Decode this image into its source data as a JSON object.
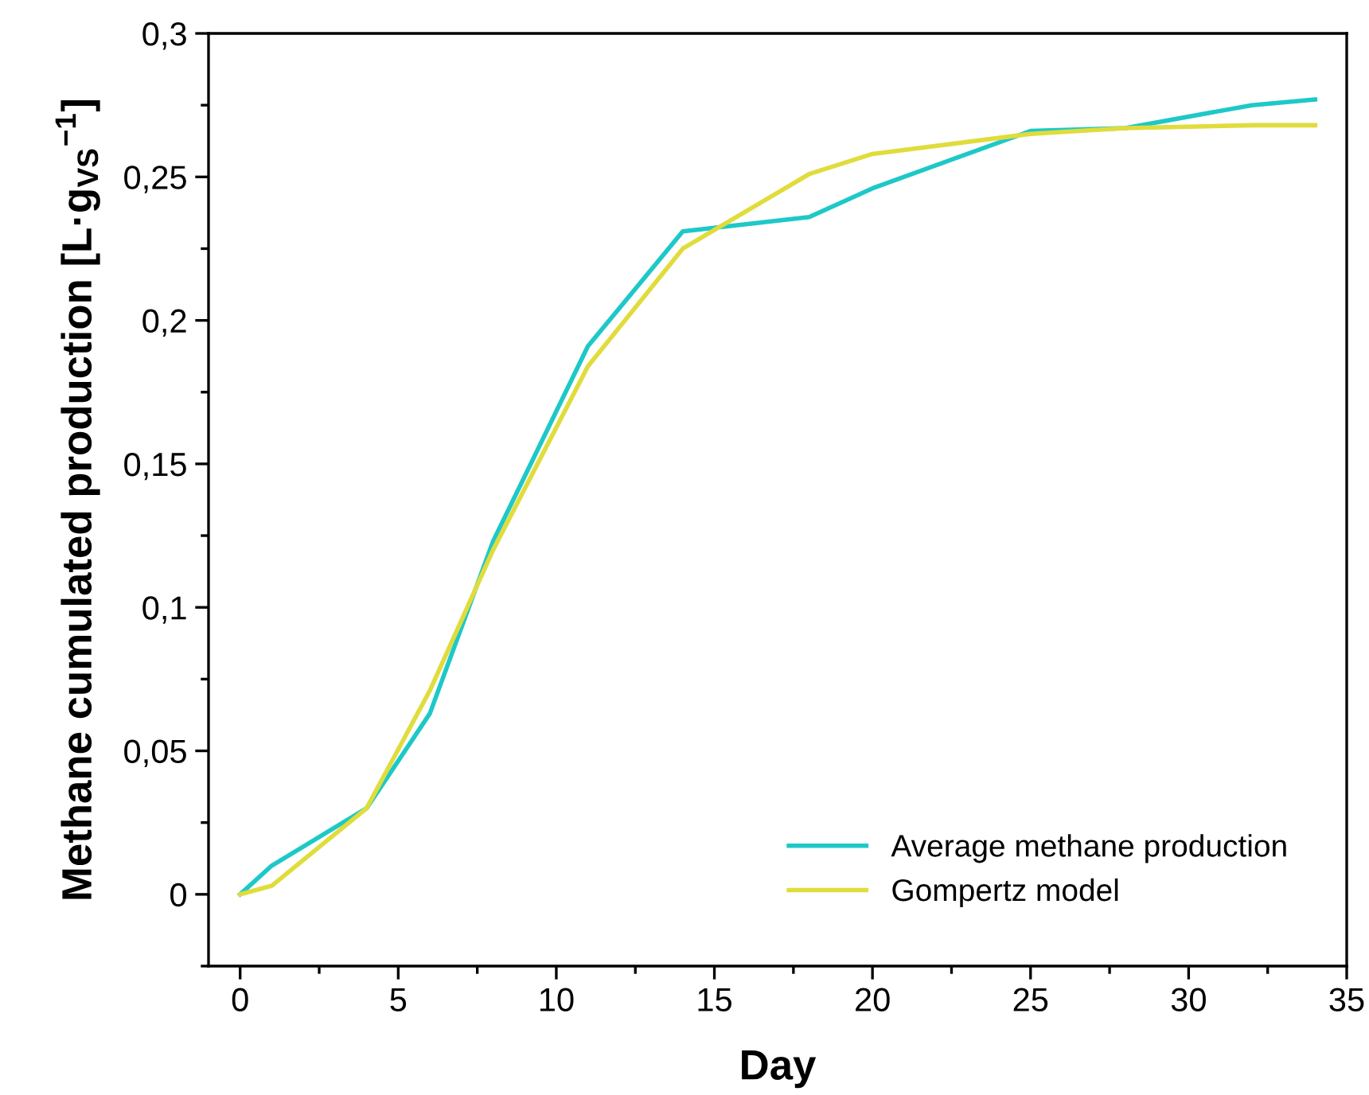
{
  "chart_data": {
    "type": "line",
    "xlabel": "Day",
    "ylabel": "Methane cumulated production [L·g$_{VS}$$^{−1}$]",
    "xlim": [
      -1,
      35
    ],
    "xticks": [
      0,
      5,
      10,
      15,
      20,
      25,
      30,
      35
    ],
    "ylim": [
      -0.025,
      0.3
    ],
    "yticks": [
      {
        "value": 0,
        "label": "0"
      },
      {
        "value": 0.05,
        "label": "0,05"
      },
      {
        "value": 0.1,
        "label": "0,1"
      },
      {
        "value": 0.15,
        "label": "0,15"
      },
      {
        "value": 0.2,
        "label": "0,2"
      },
      {
        "value": 0.25,
        "label": "0,25"
      },
      {
        "value": 0.3,
        "label": "0,3"
      }
    ],
    "grid": false,
    "legend": "bottom right",
    "marker": "none",
    "line_style": "solid",
    "series": [
      {
        "name": "Average methane production",
        "color": "#1ec8c8",
        "x": [
          0,
          1,
          4,
          6,
          8,
          11,
          14,
          18,
          20,
          25,
          28,
          32,
          34
        ],
        "values": [
          0,
          0.01,
          0.03,
          0.063,
          0.123,
          0.191,
          0.231,
          0.236,
          0.246,
          0.266,
          0.267,
          0.275,
          0.277
        ]
      },
      {
        "name": "Gompertz model",
        "color": "#e0dc3c",
        "x": [
          0,
          1,
          4,
          6,
          8,
          11,
          14,
          18,
          20,
          25,
          28,
          32,
          34
        ],
        "values": [
          0,
          0.003,
          0.03,
          0.071,
          0.12,
          0.184,
          0.225,
          0.251,
          0.258,
          0.265,
          0.267,
          0.268,
          0.268
        ]
      }
    ]
  }
}
